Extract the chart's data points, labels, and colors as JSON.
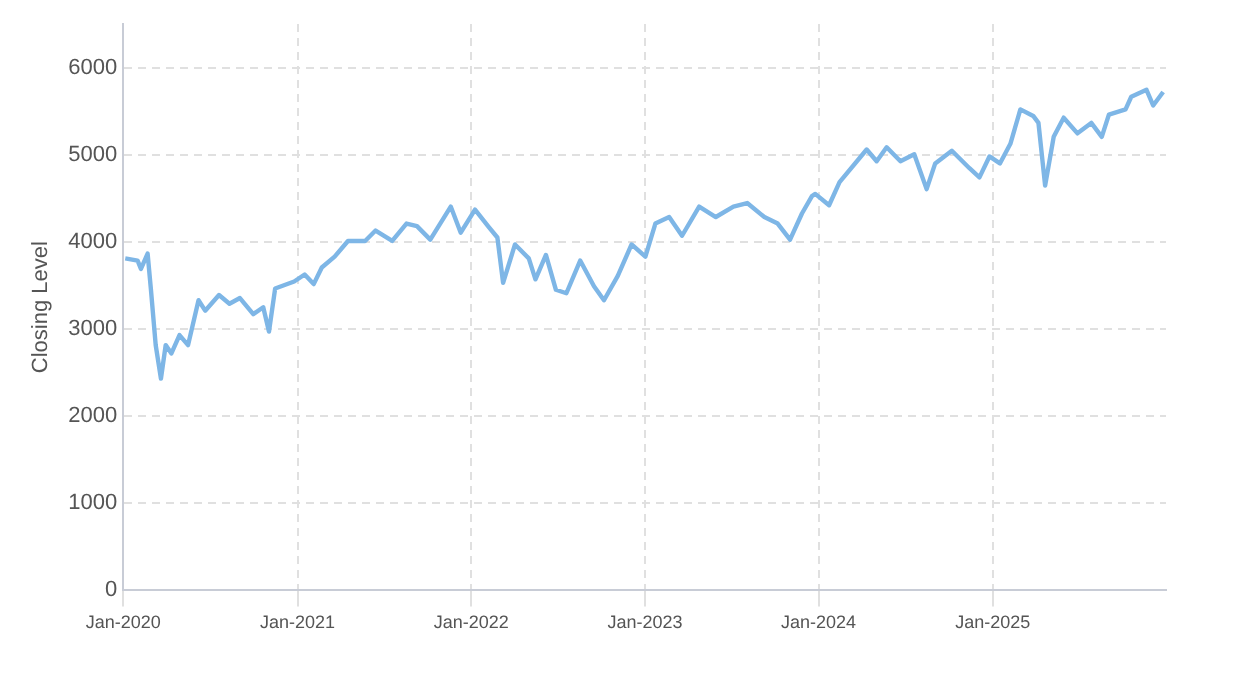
{
  "chart_data": {
    "type": "line",
    "ylabel": "Closing Level",
    "x": [
      "2020-01-05",
      "2020-01-31",
      "2020-02-07",
      "2020-02-21",
      "2020-02-28",
      "2020-03-09",
      "2020-03-20",
      "2020-03-30",
      "2020-04-11",
      "2020-04-28",
      "2020-05-16",
      "2020-06-07",
      "2020-06-21",
      "2020-07-20",
      "2020-08-11",
      "2020-09-02",
      "2020-09-30",
      "2020-10-21",
      "2020-11-02",
      "2020-11-15",
      "2020-12-25",
      "2021-01-16",
      "2021-02-04",
      "2021-02-21",
      "2021-03-20",
      "2021-04-17",
      "2021-05-23",
      "2021-06-14",
      "2021-07-19",
      "2021-08-18",
      "2021-09-09",
      "2021-10-07",
      "2021-11-19",
      "2021-12-10",
      "2022-01-09",
      "2022-02-07",
      "2022-02-25",
      "2022-03-09",
      "2022-04-03",
      "2022-05-02",
      "2022-05-16",
      "2022-06-07",
      "2022-06-28",
      "2022-07-20",
      "2022-08-18",
      "2022-09-16",
      "2022-10-07",
      "2022-11-05",
      "2022-12-04",
      "2023-01-02",
      "2023-01-23",
      "2023-02-21",
      "2023-03-20",
      "2023-04-25",
      "2023-05-30",
      "2023-07-06",
      "2023-08-04",
      "2023-09-09",
      "2023-10-07",
      "2023-11-02",
      "2023-11-27",
      "2023-12-18",
      "2023-12-25",
      "2024-01-23",
      "2024-02-14",
      "2024-04-11",
      "2024-05-02",
      "2024-05-23",
      "2024-06-21",
      "2024-07-20",
      "2024-08-15",
      "2024-09-02",
      "2024-10-07",
      "2024-11-13",
      "2024-12-04",
      "2024-12-25",
      "2025-01-16",
      "2025-02-07",
      "2025-02-28",
      "2025-03-27",
      "2025-04-07",
      "2025-04-21",
      "2025-05-09",
      "2025-05-30",
      "2025-06-28",
      "2025-07-27",
      "2025-08-18",
      "2025-09-02",
      "2025-10-07",
      "2025-10-19",
      "2025-11-20",
      "2025-12-04",
      "2025-12-25"
    ],
    "series": [
      {
        "color": "#7eb6e6",
        "values": [
          3810,
          3785,
          3690,
          3865,
          3450,
          2815,
          2430,
          2815,
          2720,
          2930,
          2815,
          3330,
          3210,
          3390,
          3290,
          3355,
          3170,
          3250,
          2970,
          3465,
          3545,
          3625,
          3515,
          3705,
          3830,
          4010,
          4010,
          4130,
          4010,
          4210,
          4180,
          4025,
          4405,
          4105,
          4370,
          4170,
          4050,
          3530,
          3970,
          3810,
          3570,
          3850,
          3450,
          3410,
          3785,
          3490,
          3330,
          3610,
          3970,
          3830,
          4210,
          4285,
          4070,
          4405,
          4285,
          4405,
          4445,
          4285,
          4210,
          4025,
          4325,
          4525,
          4550,
          4420,
          4685,
          5060,
          4925,
          5085,
          4925,
          5005,
          4605,
          4900,
          5045,
          4845,
          4740,
          4980,
          4900,
          5125,
          5520,
          5445,
          5365,
          4645,
          5205,
          5425,
          5245,
          5365,
          5205,
          5460,
          5520,
          5665,
          5745,
          5565,
          5720
        ]
      }
    ],
    "xlim": [
      "2020-01-01",
      "2025-12-31"
    ],
    "xticks": [
      {
        "value": "2020-01-01",
        "label": "Jan-2020"
      },
      {
        "value": "2021-01-01",
        "label": "Jan-2021"
      },
      {
        "value": "2022-01-01",
        "label": "Jan-2022"
      },
      {
        "value": "2023-01-01",
        "label": "Jan-2023"
      },
      {
        "value": "2024-01-01",
        "label": "Jan-2024"
      },
      {
        "value": "2025-01-01",
        "label": "Jan-2025"
      }
    ],
    "ylim": [
      0,
      6500
    ],
    "yticks": [
      0,
      1000,
      2000,
      3000,
      4000,
      5000,
      6000
    ],
    "grid": true,
    "legend": false,
    "marker": "none",
    "line_style": "solid"
  }
}
